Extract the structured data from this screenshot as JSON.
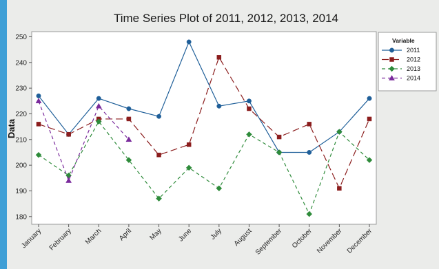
{
  "chart_data": {
    "type": "line",
    "title": "Time Series Plot of 2011, 2012, 2013, 2014",
    "xlabel": "",
    "ylabel": "Data",
    "ylim": [
      177,
      252
    ],
    "yticks": [
      180,
      190,
      200,
      210,
      220,
      230,
      240,
      250
    ],
    "categories": [
      "January",
      "February",
      "March",
      "April",
      "May",
      "June",
      "July",
      "August",
      "September",
      "October",
      "November",
      "December"
    ],
    "grid": false,
    "legend": {
      "title": "Variable",
      "position": "right"
    },
    "series": [
      {
        "name": "2011",
        "color": "#1f5f99",
        "dash": "solid",
        "marker": "circle",
        "values": [
          227,
          212,
          226,
          222,
          219,
          248,
          223,
          225,
          205,
          205,
          213,
          226
        ]
      },
      {
        "name": "2012",
        "color": "#8b1d1d",
        "dash": "long-dash",
        "marker": "square",
        "values": [
          216,
          212,
          218,
          218,
          204,
          208,
          242,
          222,
          211,
          216,
          191,
          218
        ]
      },
      {
        "name": "2013",
        "color": "#2e8b3a",
        "dash": "dash",
        "marker": "diamond",
        "values": [
          204,
          196,
          217,
          202,
          187,
          199,
          191,
          212,
          205,
          181,
          213,
          202
        ]
      },
      {
        "name": "2014",
        "color": "#7a2a9c",
        "dash": "dash",
        "marker": "triangle",
        "values": [
          225,
          194,
          223,
          210,
          null,
          null,
          null,
          null,
          null,
          null,
          null,
          null
        ]
      }
    ]
  }
}
